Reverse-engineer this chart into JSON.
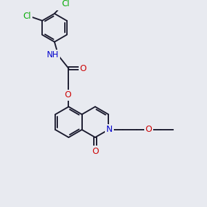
{
  "bg_color": "#e8eaf0",
  "atom_colors": {
    "C": "#000000",
    "N": "#0000cc",
    "O": "#cc0000",
    "Cl": "#00aa00",
    "H": "#000000"
  },
  "bond_color": "#1a1a2e",
  "bond_width": 1.4,
  "figsize": [
    3.0,
    3.0
  ],
  "dpi": 100,
  "xlim": [
    0,
    10
  ],
  "ylim": [
    0,
    10
  ]
}
